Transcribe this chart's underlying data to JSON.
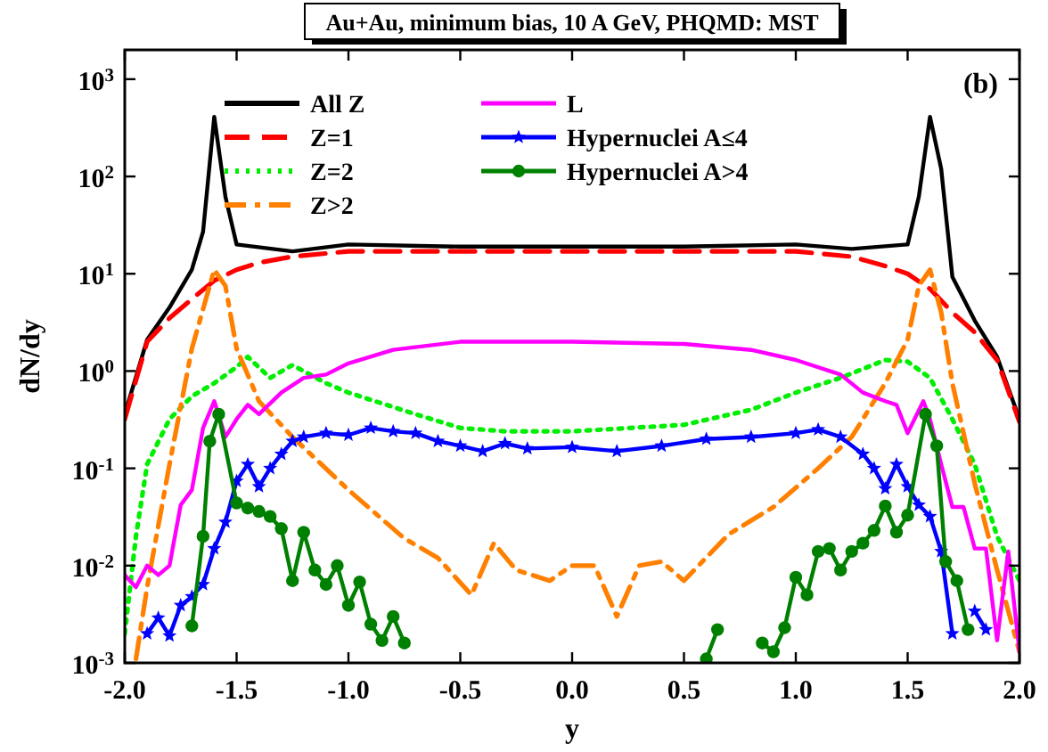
{
  "chart_data": {
    "type": "line",
    "title": "Au+Au, minimum bias, 10 A GeV, PHQMD: MST",
    "xlabel": "y",
    "ylabel": "dN/dy",
    "annotations": [
      "(b)"
    ],
    "log": "y",
    "grid": false,
    "legend": "top",
    "xlim": [
      -2.0,
      2.0
    ],
    "ylim": [
      0.001,
      2000
    ],
    "xticks": [
      {
        "value": -2,
        "label": "-2.0"
      },
      {
        "value": -1.5,
        "label": "-1.5"
      },
      {
        "value": -1,
        "label": "-1.0"
      },
      {
        "value": -0.5,
        "label": "-0.5"
      },
      {
        "value": 0,
        "label": "0.0"
      },
      {
        "value": 0.5,
        "label": "0.5"
      },
      {
        "value": 1,
        "label": "1.0"
      },
      {
        "value": 1.5,
        "label": "1.5"
      },
      {
        "value": 2,
        "label": "2.0"
      }
    ],
    "yticks": [
      {
        "value": 0.001,
        "label": "10$^{-3}$"
      },
      {
        "value": 0.01,
        "label": "10$^{-2}$"
      },
      {
        "value": 0.1,
        "label": "10$^{-1}$"
      },
      {
        "value": 1,
        "label": "10$^{0}$"
      },
      {
        "value": 10,
        "label": "10$^{1}$"
      },
      {
        "value": 100,
        "label": "10$^{2}$"
      },
      {
        "value": 1000,
        "label": "10$^{3}$"
      }
    ],
    "series": [
      {
        "name": "All Z",
        "color": "#000000",
        "line_style": "solid",
        "marker": "none",
        "x": [
          -2,
          -1.9,
          -1.8,
          -1.7,
          -1.65,
          -1.6,
          -1.55,
          -1.5,
          -1.25,
          -1,
          -0.5,
          0,
          0.5,
          1,
          1.25,
          1.5,
          1.55,
          1.6,
          1.65,
          1.7,
          1.8,
          1.9,
          2
        ],
        "values": [
          0.36,
          2.1,
          4.5,
          11,
          27,
          410,
          62,
          20,
          17,
          20,
          19,
          19,
          19,
          20,
          18,
          20,
          62,
          410,
          120,
          9.3,
          3.3,
          1.4,
          0.32
        ]
      },
      {
        "name": "Z=1",
        "color": "#ff0000",
        "line_style": "dashed",
        "marker": "none",
        "x": [
          -2,
          -1.9,
          -1.8,
          -1.7,
          -1.6,
          -1.5,
          -1.4,
          -1.25,
          -1,
          0,
          1,
          1.25,
          1.4,
          1.5,
          1.6,
          1.7,
          1.8,
          1.9,
          2
        ],
        "values": [
          0.32,
          2,
          3.5,
          5.5,
          8.5,
          11,
          13,
          15,
          17,
          17,
          17,
          15,
          12,
          10,
          7,
          4,
          2.5,
          1.3,
          0.3
        ]
      },
      {
        "name": "Z=2",
        "color": "#00ee00",
        "line_style": "dotted",
        "marker": "none",
        "x": [
          -2,
          -1.95,
          -1.9,
          -1.8,
          -1.7,
          -1.6,
          -1.5,
          -1.45,
          -1.35,
          -1.25,
          -1.1,
          -1,
          -0.7,
          -0.5,
          -0.3,
          0,
          0.5,
          0.8,
          1,
          1.2,
          1.4,
          1.5,
          1.6,
          1.7,
          1.8,
          1.9,
          2
        ],
        "values": [
          0.002,
          0.02,
          0.11,
          0.32,
          0.55,
          0.75,
          1.1,
          1.4,
          0.85,
          1.15,
          0.75,
          0.6,
          0.36,
          0.26,
          0.24,
          0.24,
          0.28,
          0.4,
          0.6,
          0.85,
          1.3,
          1.25,
          0.85,
          0.32,
          0.11,
          0.02,
          0.007
        ]
      },
      {
        "name": "Z>2",
        "color": "#ff8000",
        "line_style": "dashdot",
        "marker": "none",
        "x": [
          -1.95,
          -1.9,
          -1.8,
          -1.7,
          -1.6,
          -1.55,
          -1.5,
          -1.4,
          -1.25,
          -1,
          -0.75,
          -0.6,
          -0.45,
          -0.35,
          -0.25,
          -0.1,
          0,
          0.1,
          0.2,
          0.3,
          0.4,
          0.5,
          0.7,
          0.9,
          1.1,
          1.25,
          1.4,
          1.5,
          1.55,
          1.6,
          1.65,
          1.7,
          1.8,
          1.9,
          2
        ],
        "values": [
          0.0011,
          0.006,
          0.11,
          1.7,
          11,
          7.5,
          1.7,
          0.49,
          0.21,
          0.06,
          0.019,
          0.012,
          0.005,
          0.017,
          0.009,
          0.007,
          0.01,
          0.01,
          0.003,
          0.01,
          0.011,
          0.007,
          0.021,
          0.04,
          0.1,
          0.21,
          0.75,
          2.1,
          7.5,
          11,
          4,
          0.75,
          0.07,
          0.009,
          0.0013
        ]
      },
      {
        "name": "L",
        "color": "#ff00ff",
        "line_style": "solid",
        "marker": "none",
        "x": [
          -2,
          -1.95,
          -1.9,
          -1.85,
          -1.8,
          -1.75,
          -1.7,
          -1.65,
          -1.6,
          -1.55,
          -1.5,
          -1.45,
          -1.4,
          -1.3,
          -1.2,
          -1.1,
          -1,
          -0.8,
          -0.5,
          0,
          0.5,
          0.8,
          1,
          1.2,
          1.3,
          1.4,
          1.45,
          1.5,
          1.57,
          1.6,
          1.65,
          1.7,
          1.75,
          1.8,
          1.85,
          1.9,
          1.95,
          2
        ],
        "values": [
          0.008,
          0.006,
          0.01,
          0.008,
          0.01,
          0.042,
          0.06,
          0.26,
          0.49,
          0.21,
          0.32,
          0.45,
          0.36,
          0.6,
          0.85,
          0.92,
          1.2,
          1.65,
          2,
          2,
          1.9,
          1.65,
          1.3,
          0.92,
          0.6,
          0.49,
          0.45,
          0.23,
          0.49,
          0.32,
          0.11,
          0.04,
          0.04,
          0.015,
          0.015,
          0.0017,
          0.014,
          0.0013
        ]
      },
      {
        "name": "Hypernuclei A≤4",
        "color": "#0000ff",
        "line_style": "solid",
        "marker": "star",
        "x": [
          -1.9,
          -1.85,
          -1.8,
          -1.75,
          -1.7,
          -1.65,
          -1.6,
          -1.55,
          -1.5,
          -1.45,
          -1.4,
          -1.35,
          -1.3,
          -1.25,
          -1.2,
          -1.1,
          -1,
          -0.9,
          -0.8,
          -0.7,
          -0.6,
          -0.5,
          -0.4,
          -0.3,
          -0.2,
          0,
          0.2,
          0.4,
          0.6,
          0.8,
          1,
          1.1,
          1.2,
          1.3,
          1.35,
          1.4,
          1.45,
          1.5,
          1.55,
          1.6,
          1.65,
          1.7,
          1.75,
          1.8,
          1.85
        ],
        "values": [
          0.002,
          0.0029,
          0.0019,
          0.0039,
          0.0048,
          0.0064,
          0.015,
          0.028,
          0.074,
          0.11,
          0.065,
          0.1,
          0.14,
          0.19,
          0.21,
          0.23,
          0.22,
          0.26,
          0.24,
          0.23,
          0.19,
          0.17,
          0.15,
          0.18,
          0.16,
          0.165,
          0.15,
          0.17,
          0.2,
          0.21,
          0.23,
          0.25,
          0.21,
          0.14,
          0.1,
          0.062,
          0.11,
          0.065,
          0.042,
          0.032,
          0.014,
          0.002,
          null,
          0.0034,
          0.0022
        ]
      },
      {
        "name": "Hypernuclei A>4",
        "color": "#008000",
        "line_style": "solid",
        "marker": "circle",
        "x": [
          -1.7,
          -1.65,
          -1.62,
          -1.58,
          -1.5,
          -1.45,
          -1.4,
          -1.35,
          -1.3,
          -1.25,
          -1.2,
          -1.15,
          -1.1,
          -1.05,
          -1,
          -0.95,
          -0.9,
          -0.85,
          -0.8,
          -0.75,
          -0.7,
          0.6,
          0.65,
          0.7,
          0.85,
          0.9,
          0.95,
          1,
          1.05,
          1.1,
          1.15,
          1.2,
          1.25,
          1.3,
          1.35,
          1.4,
          1.45,
          1.5,
          1.58,
          1.63,
          1.67,
          1.72,
          1.77
        ],
        "values": [
          0.0024,
          0.02,
          0.19,
          0.36,
          0.044,
          0.039,
          0.036,
          0.032,
          0.024,
          0.007,
          0.022,
          0.009,
          0.0064,
          0.01,
          0.0039,
          0.0068,
          0.0025,
          0.0017,
          0.003,
          0.0016,
          null,
          0.0011,
          0.0022,
          null,
          0.0016,
          0.0013,
          0.0023,
          0.0076,
          0.005,
          0.014,
          0.015,
          0.009,
          0.014,
          0.017,
          0.023,
          0.041,
          0.022,
          0.033,
          0.36,
          0.17,
          0.011,
          0.007,
          0.0022
        ]
      }
    ]
  }
}
